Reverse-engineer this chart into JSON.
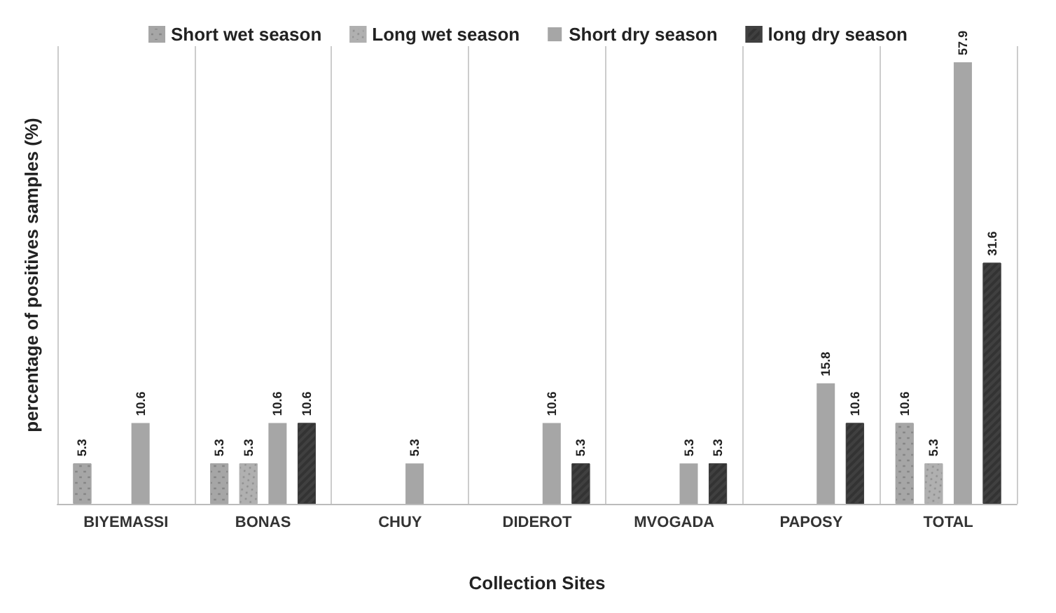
{
  "chart_data": {
    "type": "bar",
    "xlabel": "Collection Sites",
    "ylabel": "percentage of positives samples (%)",
    "categories": [
      "BIYEMASSI",
      "BONAS",
      "CHUY",
      "DIDEROT",
      "MVOGADA",
      "PAPOSY",
      "TOTAL"
    ],
    "series": [
      {
        "name": "Short wet season",
        "color": "#a6a6a6",
        "values": [
          5.3,
          5.3,
          null,
          null,
          null,
          null,
          10.6
        ]
      },
      {
        "name": "Long wet season",
        "color": "#b0b0b0",
        "values": [
          null,
          5.3,
          null,
          null,
          null,
          null,
          5.3
        ]
      },
      {
        "name": "Short dry season",
        "color": "#a6a6a6",
        "values": [
          10.6,
          10.6,
          5.3,
          10.6,
          5.3,
          15.8,
          57.9
        ]
      },
      {
        "name": "long dry season",
        "color": "#404040",
        "values": [
          null,
          10.6,
          null,
          5.3,
          5.3,
          10.6,
          31.6
        ]
      }
    ],
    "data_labels": true,
    "grid": "x",
    "legend": "top"
  }
}
